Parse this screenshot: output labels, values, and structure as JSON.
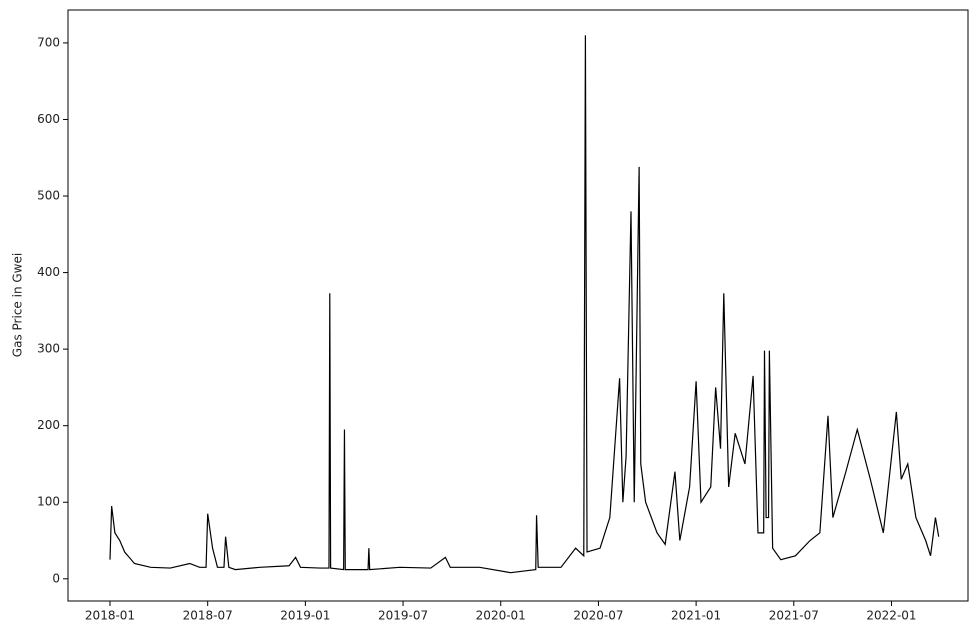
{
  "chart_data": {
    "type": "line",
    "ylabel": "Gas Price in Gwei",
    "x": [
      0,
      0.1,
      0.3,
      0.6,
      0.9,
      1.5,
      2.5,
      3.7,
      4.9,
      5.5,
      5.9,
      6.0,
      6.3,
      6.6,
      7.0,
      7.1,
      7.3,
      7.7,
      9.2,
      11.0,
      11.4,
      11.7,
      12.9,
      13.45,
      13.5,
      13.55,
      14.35,
      14.4,
      14.45,
      15.85,
      15.9,
      15.95,
      17.8,
      19.7,
      20.6,
      20.9,
      22.7,
      24.6,
      26.15,
      26.2,
      26.3,
      27.7,
      28.6,
      29.1,
      29.2,
      29.3,
      30.1,
      30.7,
      31.3,
      31.5,
      31.7,
      32.0,
      32.2,
      32.5,
      32.6,
      32.9,
      33.6,
      34.1,
      34.7,
      35.0,
      35.6,
      36.0,
      36.3,
      36.9,
      37.2,
      37.5,
      37.7,
      38.0,
      38.4,
      39.0,
      39.5,
      39.8,
      40.15,
      40.2,
      40.3,
      40.45,
      40.5,
      40.7,
      41.2,
      42.1,
      43.0,
      43.6,
      44.1,
      44.4,
      45.2,
      45.9,
      46.7,
      47.5,
      48.3,
      48.6,
      49.0,
      49.5,
      50.1,
      50.4,
      50.7,
      50.9
    ],
    "values": [
      25,
      95,
      60,
      50,
      35,
      20,
      15,
      14,
      20,
      15,
      15,
      85,
      40,
      15,
      15,
      55,
      15,
      12,
      15,
      17,
      28,
      15,
      14,
      14,
      373,
      14,
      12,
      195,
      12,
      12,
      40,
      12,
      15,
      14,
      28,
      15,
      15,
      8,
      12,
      83,
      15,
      15,
      40,
      30,
      710,
      35,
      40,
      80,
      262,
      100,
      160,
      480,
      100,
      538,
      150,
      100,
      60,
      45,
      140,
      50,
      120,
      258,
      100,
      120,
      250,
      170,
      373,
      120,
      190,
      150,
      265,
      60,
      60,
      298,
      80,
      80,
      298,
      40,
      25,
      30,
      50,
      60,
      213,
      80,
      140,
      195,
      130,
      60,
      218,
      130,
      150,
      80,
      50,
      30,
      80,
      55
    ],
    "color": "#000000",
    "xlim": [
      -2.58,
      52.7
    ],
    "xticks": [
      {
        "value": 0,
        "label": "2018-01"
      },
      {
        "value": 6,
        "label": "2018-07"
      },
      {
        "value": 12,
        "label": "2019-01"
      },
      {
        "value": 18,
        "label": "2019-07"
      },
      {
        "value": 24,
        "label": "2020-01"
      },
      {
        "value": 30,
        "label": "2020-07"
      },
      {
        "value": 36,
        "label": "2021-01"
      },
      {
        "value": 42,
        "label": "2021-07"
      },
      {
        "value": 48,
        "label": "2022-01"
      }
    ],
    "ylim": [
      -29,
      743
    ],
    "yticks": [
      0,
      100,
      200,
      300,
      400,
      500,
      600,
      700
    ]
  }
}
